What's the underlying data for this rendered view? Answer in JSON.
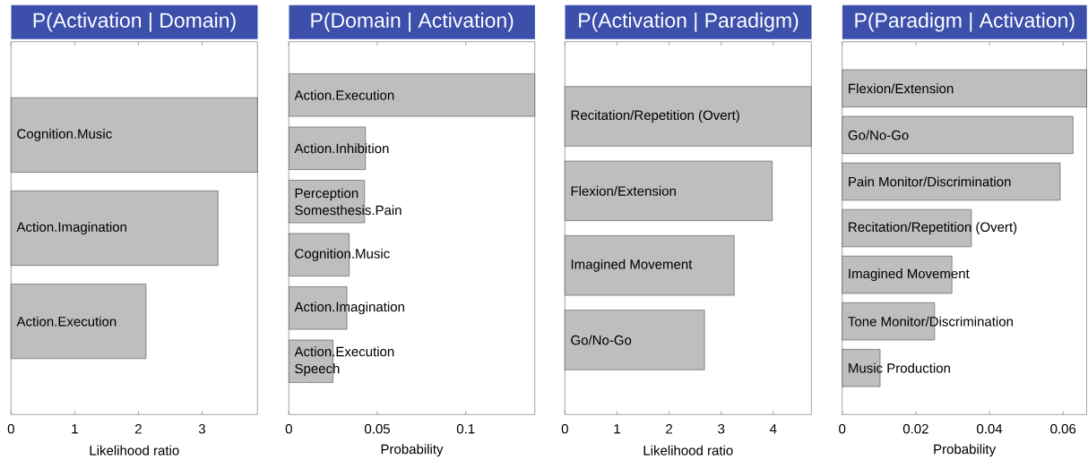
{
  "chart_data": [
    {
      "type": "bar",
      "orientation": "horizontal",
      "title": "P(Activation | Domain)",
      "xlabel": "Likelihood ratio",
      "categories": [
        "Cognition.Music",
        "Action.Imagination",
        "Action.Execution"
      ],
      "values": [
        3.87,
        3.25,
        2.12
      ],
      "color": "#bebebe",
      "xlim": [
        0,
        3.87
      ],
      "xticks": [
        0,
        1,
        2,
        3
      ]
    },
    {
      "type": "bar",
      "orientation": "horizontal",
      "title": "P(Domain | Activation)",
      "xlabel": "Probability",
      "categories": [
        "Action.Execution",
        "Action.Inhibition",
        "Perception Somesthesis.Pain",
        "Cognition.Music",
        "Action.Imagination",
        "Action.Execution Speech"
      ],
      "values": [
        0.139,
        0.0433,
        0.0428,
        0.0341,
        0.0328,
        0.025
      ],
      "color": "#bebebe",
      "xlim": [
        0,
        0.139
      ],
      "xticks": [
        0,
        0.05,
        0.1
      ]
    },
    {
      "type": "bar",
      "orientation": "horizontal",
      "title": "P(Activation | Paradigm)",
      "xlabel": "Likelihood ratio",
      "categories": [
        "Recitation/Repetition (Overt)",
        "Flexion/Extension",
        "Imagined Movement",
        "Go/No-Go"
      ],
      "values": [
        4.73,
        3.98,
        3.25,
        2.68
      ],
      "color": "#bebebe",
      "xlim": [
        0,
        4.73
      ],
      "xticks": [
        0,
        1,
        2,
        3,
        4
      ]
    },
    {
      "type": "bar",
      "orientation": "horizontal",
      "title": "P(Paradigm | Activation)",
      "xlabel": "Probability",
      "categories": [
        "Flexion/Extension",
        "Go/No-Go",
        "Pain Monitor/Discrimination",
        "Recitation/Repetition (Overt)",
        "Imagined Movement",
        "Tone Monitor/Discrimination",
        "Music Production"
      ],
      "values": [
        0.0664,
        0.0627,
        0.0592,
        0.0351,
        0.0298,
        0.0251,
        0.0103
      ],
      "color": "#bebebe",
      "xlim": [
        0,
        0.0664
      ],
      "xticks": [
        0,
        0.02,
        0.04,
        0.06
      ]
    }
  ]
}
